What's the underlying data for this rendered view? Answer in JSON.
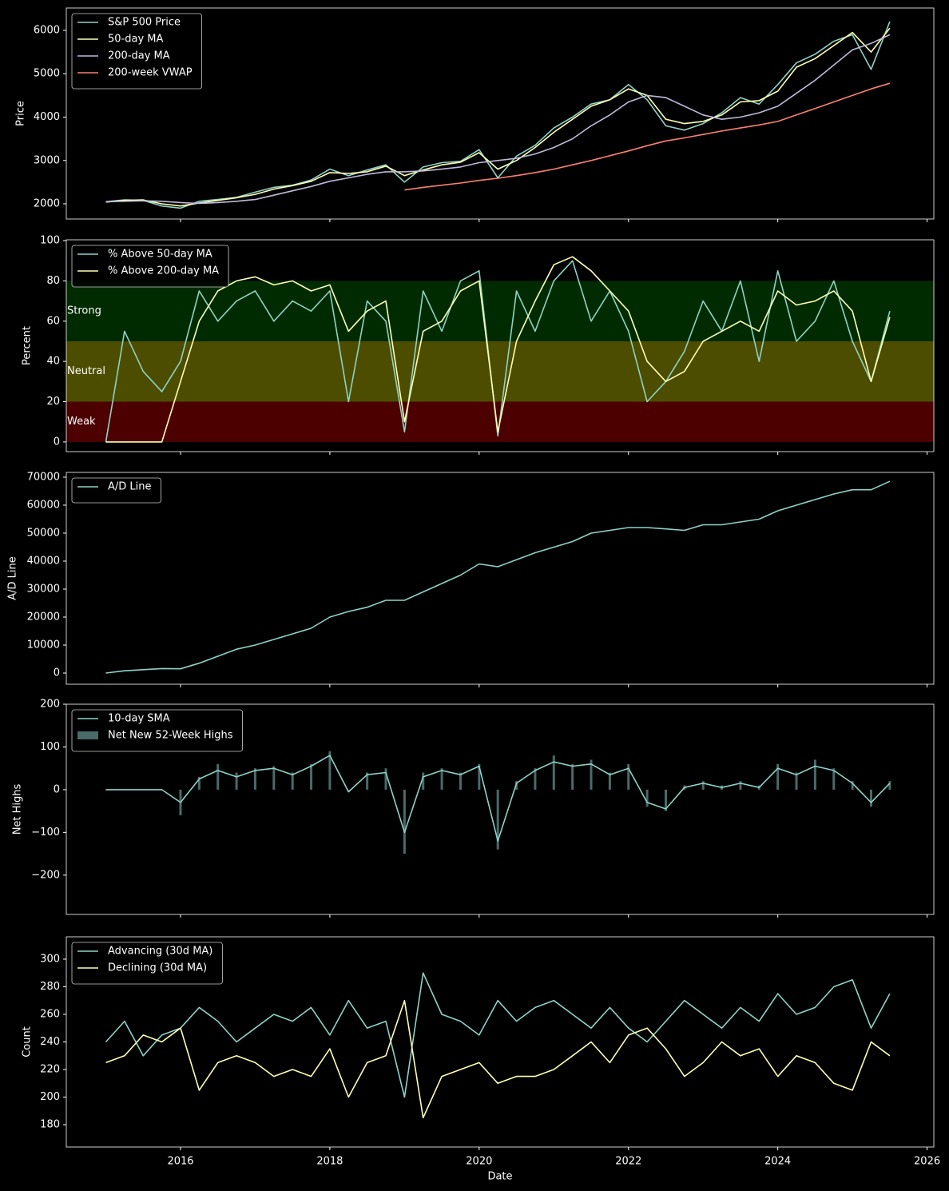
{
  "chart_data": [
    {
      "type": "line",
      "ylabel": "Price",
      "xlim": [
        2014.47,
        2026.09
      ],
      "ylim": [
        1650,
        6516
      ],
      "xticks": [
        2016,
        2018,
        2020,
        2022,
        2024,
        2026
      ],
      "yticks": [
        2000,
        3000,
        4000,
        5000,
        6000
      ],
      "legend": "upper left",
      "x": [
        2015,
        2015.25,
        2015.5,
        2015.75,
        2016,
        2016.25,
        2016.5,
        2016.75,
        2017,
        2017.25,
        2017.5,
        2017.75,
        2018,
        2018.25,
        2018.5,
        2018.75,
        2019,
        2019.25,
        2019.5,
        2019.75,
        2020,
        2020.25,
        2020.5,
        2020.75,
        2021,
        2021.25,
        2021.5,
        2021.75,
        2022,
        2022.25,
        2022.5,
        2022.75,
        2023,
        2023.25,
        2023.5,
        2023.75,
        2024,
        2024.25,
        2024.5,
        2024.75,
        2025,
        2025.25,
        2025.5
      ],
      "series": [
        {
          "name": "S&P 500 Price",
          "color": "#8dd3c7",
          "values": [
            2050,
            2090,
            2080,
            1950,
            1900,
            2060,
            2100,
            2150,
            2270,
            2380,
            2430,
            2550,
            2800,
            2650,
            2780,
            2900,
            2500,
            2850,
            2950,
            2980,
            3250,
            2600,
            3100,
            3350,
            3750,
            4000,
            4300,
            4400,
            4750,
            4400,
            3800,
            3700,
            3850,
            4100,
            4450,
            4300,
            4750,
            5250,
            5450,
            5750,
            5900,
            5100,
            6200
          ]
        },
        {
          "name": "50-day MA",
          "color": "#ffffb3",
          "values": [
            2040,
            2080,
            2090,
            2000,
            1950,
            2020,
            2080,
            2140,
            2220,
            2340,
            2420,
            2520,
            2720,
            2700,
            2740,
            2870,
            2650,
            2780,
            2900,
            2960,
            3180,
            2800,
            3000,
            3300,
            3650,
            3950,
            4250,
            4400,
            4650,
            4500,
            3950,
            3850,
            3900,
            4050,
            4350,
            4380,
            4600,
            5150,
            5350,
            5650,
            5950,
            5500,
            6050
          ]
        },
        {
          "name": "200-day MA",
          "color": "#bebada",
          "values": [
            2050,
            2060,
            2070,
            2060,
            2030,
            2010,
            2030,
            2060,
            2100,
            2200,
            2300,
            2400,
            2520,
            2600,
            2680,
            2740,
            2740,
            2760,
            2800,
            2850,
            2950,
            3000,
            3050,
            3150,
            3300,
            3500,
            3800,
            4050,
            4350,
            4500,
            4450,
            4250,
            4050,
            3950,
            4000,
            4100,
            4250,
            4550,
            4850,
            5200,
            5550,
            5700,
            5900
          ]
        },
        {
          "name": "200-week VWAP",
          "color": "#fb8072",
          "values": [
            null,
            null,
            null,
            null,
            null,
            null,
            null,
            null,
            null,
            null,
            null,
            null,
            null,
            null,
            null,
            null,
            2320,
            2380,
            2430,
            2480,
            2540,
            2590,
            2650,
            2720,
            2800,
            2900,
            3000,
            3110,
            3220,
            3340,
            3450,
            3520,
            3600,
            3680,
            3750,
            3820,
            3900,
            4050,
            4200,
            4350,
            4500,
            4650,
            4780
          ]
        }
      ]
    },
    {
      "type": "line",
      "ylabel": "Percent",
      "xlim": [
        2014.47,
        2026.09
      ],
      "ylim": [
        -4.8,
        100.4
      ],
      "xticks": [
        2016,
        2018,
        2020,
        2022,
        2024,
        2026
      ],
      "yticks": [
        0,
        20,
        40,
        60,
        80,
        100
      ],
      "legend": "upper left",
      "bands": [
        {
          "label": "Strong",
          "range": [
            50,
            80
          ],
          "color": "#002b00"
        },
        {
          "label": "Neutral",
          "range": [
            20,
            50
          ],
          "color": "#4d4d00"
        },
        {
          "label": "Weak",
          "range": [
            0,
            20
          ],
          "color": "#4d0000"
        }
      ],
      "x": [
        2015,
        2015.25,
        2015.5,
        2015.75,
        2016,
        2016.25,
        2016.5,
        2016.75,
        2017,
        2017.25,
        2017.5,
        2017.75,
        2018,
        2018.25,
        2018.5,
        2018.75,
        2019,
        2019.25,
        2019.5,
        2019.75,
        2020,
        2020.25,
        2020.5,
        2020.75,
        2021,
        2021.25,
        2021.5,
        2021.75,
        2022,
        2022.25,
        2022.5,
        2022.75,
        2023,
        2023.25,
        2023.5,
        2023.75,
        2024,
        2024.25,
        2024.5,
        2024.75,
        2025,
        2025.25,
        2025.5
      ],
      "series": [
        {
          "name": "% Above 50-day MA",
          "color": "#8dd3c7",
          "values": [
            0,
            55,
            35,
            25,
            40,
            75,
            60,
            70,
            75,
            60,
            70,
            65,
            75,
            20,
            70,
            60,
            5,
            75,
            55,
            80,
            85,
            3,
            75,
            55,
            80,
            90,
            60,
            75,
            55,
            20,
            30,
            45,
            70,
            55,
            80,
            40,
            85,
            50,
            60,
            80,
            50,
            30,
            65
          ]
        },
        {
          "name": "% Above 200-day MA",
          "color": "#ffffb3",
          "values": [
            0,
            0,
            0,
            0,
            30,
            60,
            75,
            80,
            82,
            78,
            80,
            75,
            78,
            55,
            65,
            70,
            10,
            55,
            60,
            75,
            80,
            5,
            50,
            70,
            88,
            92,
            85,
            75,
            65,
            40,
            30,
            35,
            50,
            55,
            60,
            55,
            75,
            68,
            70,
            75,
            65,
            30,
            62
          ]
        }
      ]
    },
    {
      "type": "line",
      "ylabel": "A/D Line",
      "xlim": [
        2014.47,
        2026.09
      ],
      "ylim": [
        -4000,
        71700
      ],
      "xticks": [
        2016,
        2018,
        2020,
        2022,
        2024,
        2026
      ],
      "yticks": [
        0,
        10000,
        20000,
        30000,
        40000,
        50000,
        60000,
        70000
      ],
      "legend": "upper left",
      "x": [
        2015,
        2015.25,
        2015.5,
        2015.75,
        2016,
        2016.25,
        2016.5,
        2016.75,
        2017,
        2017.25,
        2017.5,
        2017.75,
        2018,
        2018.25,
        2018.5,
        2018.75,
        2019,
        2019.25,
        2019.5,
        2019.75,
        2020,
        2020.25,
        2020.5,
        2020.75,
        2021,
        2021.25,
        2021.5,
        2021.75,
        2022,
        2022.25,
        2022.5,
        2022.75,
        2023,
        2023.25,
        2023.5,
        2023.75,
        2024,
        2024.25,
        2024.5,
        2024.75,
        2025,
        2025.25,
        2025.5
      ],
      "series": [
        {
          "name": "A/D Line",
          "color": "#8dd3c7",
          "values": [
            0,
            800,
            1200,
            1600,
            1500,
            3500,
            6000,
            8500,
            10000,
            12000,
            14000,
            16000,
            20000,
            22000,
            23500,
            26000,
            26000,
            29000,
            32000,
            35000,
            39000,
            38000,
            40500,
            43000,
            45000,
            47000,
            50000,
            51000,
            52000,
            52000,
            51500,
            51000,
            53000,
            53000,
            54000,
            55000,
            58000,
            60000,
            62000,
            64000,
            65500,
            65500,
            68500
          ]
        }
      ]
    },
    {
      "type": "line",
      "ylabel": "Net Highs",
      "xlim": [
        2014.47,
        2026.09
      ],
      "ylim": [
        -292,
        200
      ],
      "xticks": [
        2016,
        2018,
        2020,
        2022,
        2024,
        2026
      ],
      "yticks": [
        {
          "value": -200,
          "label": "−200"
        },
        {
          "value": -100,
          "label": "−100"
        },
        0,
        100,
        200
      ],
      "legend": "upper left",
      "x": [
        2015,
        2015.25,
        2015.5,
        2015.75,
        2016,
        2016.25,
        2016.5,
        2016.75,
        2017,
        2017.25,
        2017.5,
        2017.75,
        2018,
        2018.25,
        2018.5,
        2018.75,
        2019,
        2019.25,
        2019.5,
        2019.75,
        2020,
        2020.25,
        2020.5,
        2020.75,
        2021,
        2021.25,
        2021.5,
        2021.75,
        2022,
        2022.25,
        2022.5,
        2022.75,
        2023,
        2023.25,
        2023.5,
        2023.75,
        2024,
        2024.25,
        2024.5,
        2024.75,
        2025,
        2025.25,
        2025.5
      ],
      "series": [
        {
          "name": "10-day SMA",
          "color": "#8dd3c7",
          "values": [
            0,
            0,
            0,
            0,
            -30,
            25,
            45,
            30,
            45,
            50,
            35,
            55,
            80,
            -5,
            35,
            40,
            -100,
            30,
            45,
            35,
            55,
            -120,
            15,
            45,
            65,
            55,
            60,
            35,
            50,
            -30,
            -45,
            5,
            15,
            5,
            15,
            5,
            50,
            35,
            55,
            45,
            15,
            -30,
            15
          ]
        },
        {
          "name": "Net New 52-Week Highs",
          "type": "bar",
          "color": "#4a6b68",
          "values": [
            0,
            0,
            0,
            0,
            -60,
            30,
            60,
            40,
            50,
            55,
            40,
            60,
            90,
            0,
            40,
            50,
            -150,
            40,
            50,
            40,
            60,
            -140,
            20,
            50,
            80,
            60,
            70,
            40,
            60,
            -40,
            -50,
            10,
            20,
            10,
            20,
            10,
            60,
            40,
            70,
            50,
            20,
            -40,
            20
          ]
        }
      ]
    },
    {
      "type": "line",
      "ylabel": "Count",
      "xlabel": "Date",
      "xlim": [
        2014.47,
        2026.09
      ],
      "ylim": [
        163.8,
        316.2
      ],
      "xticks": [
        2016,
        2018,
        2020,
        2022,
        2024,
        2026
      ],
      "yticks": [
        180,
        200,
        220,
        240,
        260,
        280,
        300
      ],
      "legend": "upper left",
      "x": [
        2015,
        2015.25,
        2015.5,
        2015.75,
        2016,
        2016.25,
        2016.5,
        2016.75,
        2017,
        2017.25,
        2017.5,
        2017.75,
        2018,
        2018.25,
        2018.5,
        2018.75,
        2019,
        2019.25,
        2019.5,
        2019.75,
        2020,
        2020.25,
        2020.5,
        2020.75,
        2021,
        2021.25,
        2021.5,
        2021.75,
        2022,
        2022.25,
        2022.5,
        2022.75,
        2023,
        2023.25,
        2023.5,
        2023.75,
        2024,
        2024.25,
        2024.5,
        2024.75,
        2025,
        2025.25,
        2025.5
      ],
      "series": [
        {
          "name": "Advancing (30d MA)",
          "color": "#8dd3c7",
          "values": [
            240,
            255,
            230,
            245,
            250,
            265,
            255,
            240,
            250,
            260,
            255,
            265,
            245,
            270,
            250,
            255,
            200,
            290,
            260,
            255,
            245,
            270,
            255,
            265,
            270,
            260,
            250,
            265,
            250,
            240,
            255,
            270,
            260,
            250,
            265,
            255,
            275,
            260,
            265,
            280,
            285,
            250,
            275
          ]
        },
        {
          "name": "Declining (30d MA)",
          "color": "#ffffb3",
          "values": [
            225,
            230,
            245,
            240,
            250,
            205,
            225,
            230,
            225,
            215,
            220,
            215,
            235,
            200,
            225,
            230,
            270,
            185,
            215,
            220,
            225,
            210,
            215,
            215,
            220,
            230,
            240,
            225,
            245,
            250,
            235,
            215,
            225,
            240,
            230,
            235,
            215,
            230,
            225,
            210,
            205,
            240,
            230
          ]
        }
      ]
    }
  ]
}
